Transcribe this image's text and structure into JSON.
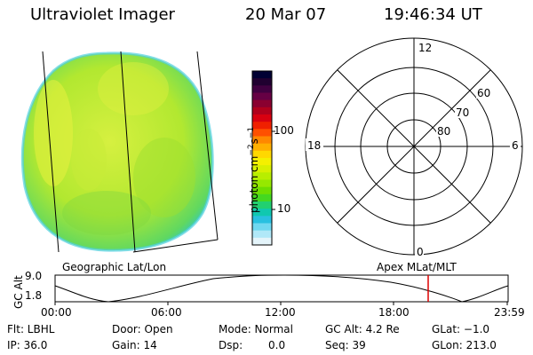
{
  "header": {
    "instrument": "Ultraviolet Imager",
    "date": "20 Mar 07",
    "time": "19:46:34 UT"
  },
  "colorbar": {
    "label_main": "photon cm",
    "label_sup1": "−2",
    "label_mid": "s",
    "label_sup2": "−1",
    "ticks": [
      "100",
      "10"
    ],
    "colors": [
      "#000033",
      "#200030",
      "#400040",
      "#660044",
      "#8a0030",
      "#b0001c",
      "#d80010",
      "#f02000",
      "#ff5000",
      "#ff8800",
      "#ffb000",
      "#ffd800",
      "#f4f000",
      "#d8f000",
      "#b8ee00",
      "#96e800",
      "#6ede00",
      "#44d820",
      "#22d070",
      "#10c8b0",
      "#28c0e0",
      "#70d8f0",
      "#b0e8f8",
      "#e4f4fa"
    ]
  },
  "polar": {
    "mlt_labels": [
      "12",
      "18",
      "6",
      "0"
    ],
    "lat_labels": [
      "60",
      "70",
      "80"
    ]
  },
  "strip": {
    "left_title": "Geographic Lat/Lon",
    "right_title": "Apex  MLat/MLT",
    "ylabel": "GC Alt",
    "ytick_top": "9.0",
    "ytick_bottom": "1.8",
    "xticks": [
      "00:00",
      "06:00",
      "12:00",
      "18:00",
      "23:59"
    ],
    "marker_color": "#dd0000"
  },
  "status": {
    "flt": "Flt: LBHL",
    "ip": "IP: 36.0",
    "door": "Door: Open",
    "gain": "Gain: 14",
    "mode": "Mode: Normal",
    "dsp_label": "Dsp:",
    "dsp_value": "0.0",
    "gcalt": "GC Alt: 4.2 Re",
    "seq": "Seq: 39",
    "glat": "GLat:  −1.0",
    "glon": "GLon: 213.0"
  }
}
